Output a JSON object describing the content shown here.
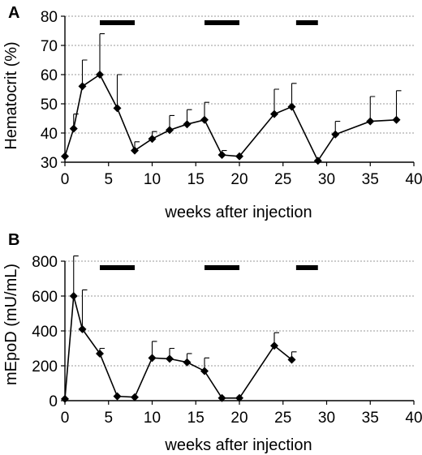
{
  "chart_data": [
    {
      "type": "line",
      "panel_label": "A",
      "xlabel": "weeks after injection",
      "ylabel": "Hematocrit (%)",
      "xlim": [
        0,
        40
      ],
      "ylim": [
        30,
        80
      ],
      "xticks": [
        0,
        5,
        10,
        15,
        20,
        25,
        30,
        35,
        40
      ],
      "yticks": [
        30,
        40,
        50,
        60,
        70,
        80
      ],
      "grid": "horizontal dotted",
      "x": [
        0,
        1,
        2,
        4,
        6,
        8,
        10,
        12,
        14,
        16,
        18,
        20,
        24,
        26,
        29,
        31,
        35,
        38
      ],
      "values": [
        32,
        41.5,
        56,
        60,
        48.5,
        34,
        38,
        41,
        43,
        44.5,
        32.5,
        32,
        46.5,
        49,
        30.5,
        39.5,
        44,
        44.5
      ],
      "error_upper": [
        null,
        46.5,
        65,
        74,
        60,
        37,
        40.5,
        46,
        48,
        50.5,
        34,
        null,
        55,
        57,
        null,
        44,
        52.5,
        54.5
      ],
      "treatment_bars": [
        [
          4,
          8
        ],
        [
          16,
          20
        ],
        [
          26.5,
          29
        ]
      ]
    },
    {
      "type": "line",
      "panel_label": "B",
      "xlabel": "weeks after injection",
      "ylabel": "mEpoD (mU/mL)",
      "xlim": [
        0,
        40
      ],
      "ylim": [
        0,
        800
      ],
      "xticks": [
        0,
        5,
        10,
        15,
        20,
        25,
        30,
        35,
        40
      ],
      "yticks": [
        0,
        200,
        400,
        600,
        800
      ],
      "grid": "horizontal dotted",
      "x": [
        0,
        1,
        2,
        4,
        6,
        8,
        10,
        12,
        14,
        16,
        18,
        20,
        24,
        26
      ],
      "values": [
        10,
        600,
        410,
        270,
        25,
        20,
        245,
        240,
        220,
        170,
        15,
        15,
        315,
        235
      ],
      "error_upper": [
        null,
        830,
        635,
        300,
        null,
        null,
        340,
        300,
        270,
        245,
        null,
        null,
        390,
        280
      ],
      "treatment_bars": [
        [
          4,
          8
        ],
        [
          16,
          20
        ],
        [
          26.5,
          29
        ]
      ]
    }
  ]
}
